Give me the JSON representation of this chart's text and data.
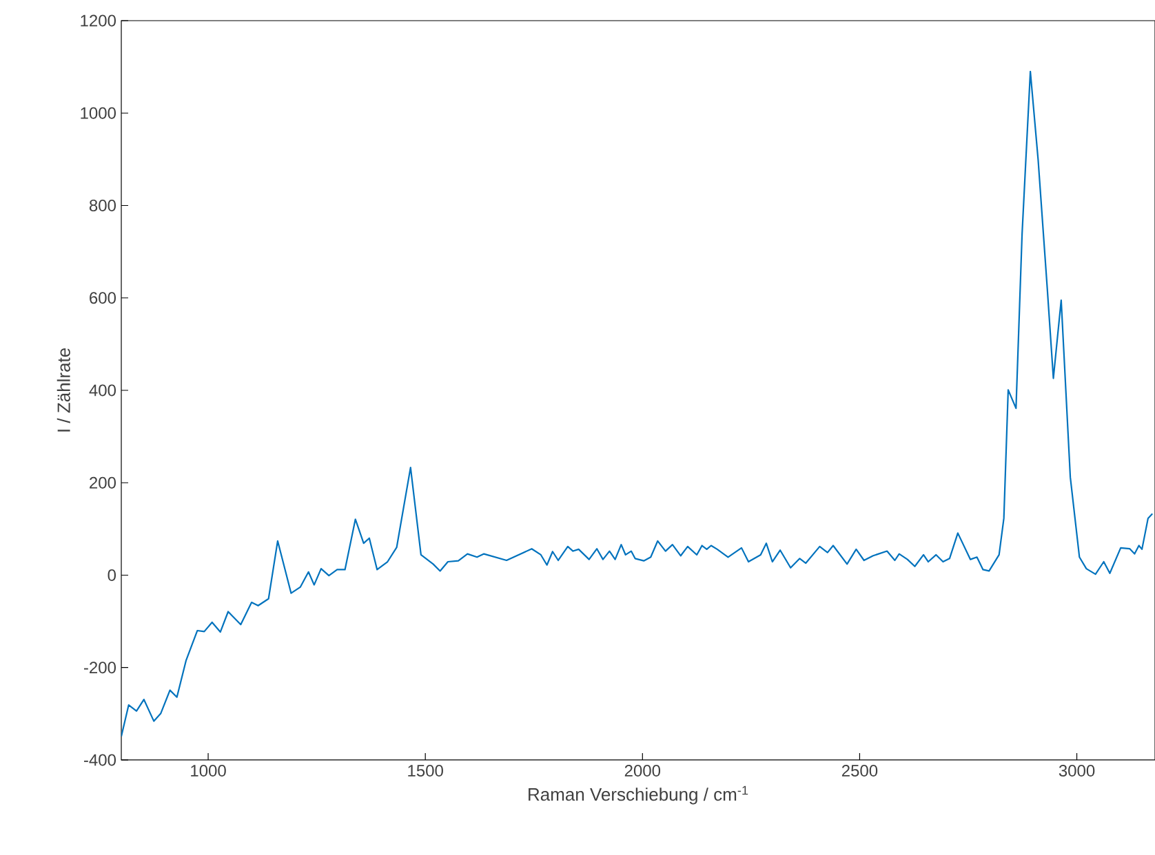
{
  "chart_data": {
    "type": "line",
    "xlabel": "Raman Verschiebung / cm$^{-1}$",
    "ylabel": "I / Zählrate",
    "xlim": [
      800,
      3180
    ],
    "ylim": [
      -400,
      1200
    ],
    "xticks": [
      1000,
      1500,
      2000,
      2500,
      3000
    ],
    "yticks": [
      -400,
      -200,
      0,
      200,
      400,
      600,
      800,
      1000,
      1200
    ],
    "x": [
      800,
      817,
      835,
      852,
      875,
      891,
      912,
      928,
      949,
      975,
      991,
      1009,
      1028,
      1046,
      1075,
      1100,
      1115,
      1139,
      1160,
      1191,
      1212,
      1231,
      1244,
      1260,
      1278,
      1297,
      1315,
      1339,
      1358,
      1371,
      1389,
      1413,
      1434,
      1466,
      1490,
      1518,
      1534,
      1552,
      1576,
      1597,
      1619,
      1635,
      1687,
      1745,
      1766,
      1780,
      1793,
      1806,
      1828,
      1840,
      1853,
      1877,
      1895,
      1909,
      1924,
      1937,
      1951,
      1961,
      1974,
      1983,
      2003,
      2019,
      2035,
      2053,
      2069,
      2088,
      2104,
      2125,
      2137,
      2148,
      2158,
      2172,
      2197,
      2228,
      2244,
      2272,
      2285,
      2299,
      2317,
      2341,
      2362,
      2376,
      2408,
      2426,
      2439,
      2471,
      2492,
      2510,
      2531,
      2563,
      2581,
      2591,
      2610,
      2627,
      2647,
      2658,
      2676,
      2692,
      2707,
      2726,
      2755,
      2770,
      2784,
      2798,
      2821,
      2832,
      2842,
      2860,
      2874,
      2893,
      2911,
      2932,
      2946,
      2964,
      2985,
      3006,
      3022,
      3043,
      3062,
      3076,
      3101,
      3122,
      3133,
      3143,
      3150,
      3164,
      3174
    ],
    "series": [
      {
        "color": "#0072bd",
        "values": [
          -349,
          -281,
          -294,
          -269,
          -316,
          -299,
          -249,
          -264,
          -185,
          -120,
          -122,
          -102,
          -123,
          -79,
          -107,
          -59,
          -66,
          -51,
          74,
          -39,
          -26,
          7,
          -21,
          14,
          -1,
          12,
          12,
          121,
          69,
          80,
          12,
          29,
          60,
          233,
          44,
          24,
          9,
          29,
          31,
          46,
          39,
          46,
          32,
          57,
          44,
          22,
          51,
          32,
          62,
          52,
          56,
          34,
          57,
          34,
          52,
          34,
          66,
          44,
          52,
          36,
          31,
          39,
          74,
          52,
          66,
          42,
          62,
          44,
          64,
          56,
          64,
          56,
          39,
          59,
          29,
          44,
          69,
          29,
          54,
          16,
          36,
          26,
          62,
          49,
          64,
          24,
          56,
          32,
          42,
          52,
          32,
          46,
          34,
          19,
          44,
          29,
          44,
          29,
          36,
          91,
          34,
          39,
          12,
          9,
          44,
          123,
          401,
          361,
          739,
          1090,
          898,
          620,
          426,
          595,
          212,
          39,
          14,
          2,
          29,
          4,
          59,
          57,
          46,
          64,
          56,
          123,
          133
        ]
      }
    ]
  }
}
